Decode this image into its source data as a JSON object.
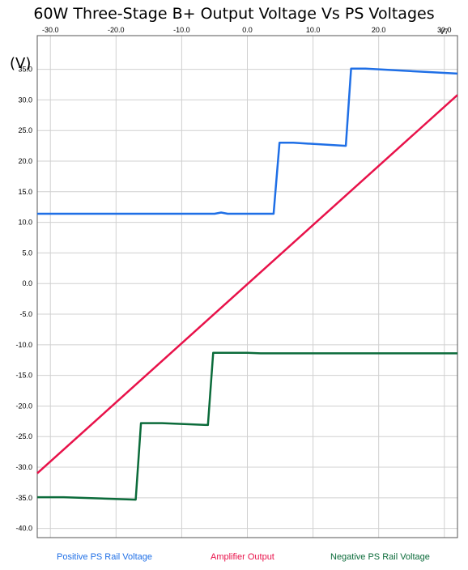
{
  "chart_data": {
    "type": "line",
    "title": "60W Three-Stage B+ Output Voltage Vs PS Voltages",
    "x_variable": "V7",
    "y_unit": "(V)",
    "xlim": [
      -32,
      32
    ],
    "ylim": [
      -41.5,
      40.5
    ],
    "x_ticks": [
      -30,
      -20,
      -10,
      0,
      10,
      20,
      30
    ],
    "x_tick_labels": [
      "-30.0",
      "-20.0",
      "-10.0",
      "0.0",
      "10.0",
      "20.0",
      "30.0"
    ],
    "y_ticks": [
      35,
      30,
      25,
      20,
      15,
      10,
      5,
      0,
      -5,
      -10,
      -15,
      -20,
      -25,
      -30,
      -35,
      -40
    ],
    "y_tick_labels": [
      "35.0",
      "30.0",
      "25.0",
      "20.0",
      "15.0",
      "10.0",
      "5.0",
      "0.0",
      "-5.0",
      "-10.0",
      "-15.0",
      "-20.0",
      "-25.0",
      "-30.0",
      "-35.0",
      "-40.0"
    ],
    "grid": true,
    "legend_position": "bottom",
    "series": [
      {
        "name": "Positive PS Rail Voltage",
        "color": "#1f6fe6",
        "points": [
          [
            -32,
            11.4
          ],
          [
            -5,
            11.4
          ],
          [
            -4,
            11.6
          ],
          [
            -3,
            11.4
          ],
          [
            4,
            11.4
          ],
          [
            4.9,
            23.0
          ],
          [
            7,
            23.0
          ],
          [
            15,
            22.5
          ],
          [
            15.8,
            35.1
          ],
          [
            18,
            35.1
          ],
          [
            32,
            34.3
          ]
        ]
      },
      {
        "name": "Amplifier Output",
        "color": "#e8124a",
        "points": [
          [
            -32,
            -31.0
          ],
          [
            32,
            30.8
          ]
        ]
      },
      {
        "name": "Negative PS Rail Voltage",
        "color": "#0b6b3a",
        "points": [
          [
            -32,
            -34.9
          ],
          [
            -28,
            -34.9
          ],
          [
            -17,
            -35.3
          ],
          [
            -16.2,
            -22.8
          ],
          [
            -13,
            -22.8
          ],
          [
            -6,
            -23.1
          ],
          [
            -5.2,
            -11.3
          ],
          [
            0,
            -11.3
          ],
          [
            2,
            -11.4
          ],
          [
            32,
            -11.4
          ]
        ]
      }
    ]
  }
}
